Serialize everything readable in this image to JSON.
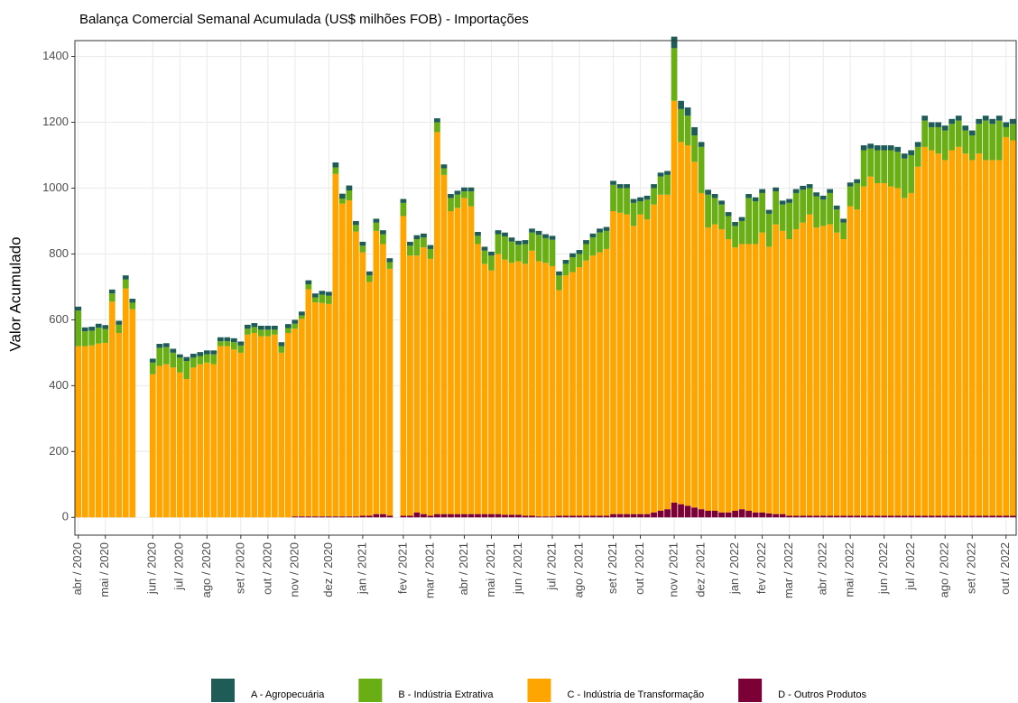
{
  "chart_data": {
    "type": "stacked_bar",
    "title": "Balança Comercial Semanal Acumulada (US$ milhões FOB) - Importações",
    "y_label": "Valor Acumulado",
    "categories": [
      "abr / 2020",
      null,
      null,
      null,
      "mai / 2020",
      null,
      null,
      null,
      null,
      null,
      null,
      "jun / 2020",
      null,
      null,
      null,
      "jul / 2020",
      null,
      null,
      null,
      "ago / 2020",
      null,
      null,
      null,
      null,
      "set / 2020",
      null,
      null,
      null,
      "out / 2020",
      null,
      null,
      null,
      "nov / 2020",
      null,
      null,
      null,
      null,
      "dez / 2020",
      null,
      null,
      null,
      null,
      "jan / 2021",
      null,
      null,
      null,
      null,
      null,
      "fev / 2021",
      null,
      null,
      null,
      "mar / 2021",
      null,
      null,
      null,
      null,
      "abr / 2021",
      null,
      null,
      null,
      "mai / 2021",
      null,
      null,
      null,
      "jun / 2021",
      null,
      null,
      null,
      null,
      "jul / 2021",
      null,
      null,
      null,
      "ago / 2021",
      null,
      null,
      null,
      null,
      "set / 2021",
      null,
      null,
      null,
      "out / 2021",
      null,
      null,
      null,
      null,
      "nov / 2021",
      null,
      null,
      null,
      "dez / 2021",
      null,
      null,
      null,
      null,
      "jan / 2022",
      null,
      null,
      null,
      "fev / 2022",
      null,
      null,
      null,
      "mar / 2022",
      null,
      null,
      null,
      null,
      "abr / 2022",
      null,
      null,
      null,
      "mai / 2022",
      null,
      null,
      null,
      null,
      "jun / 2022",
      null,
      null,
      null,
      "jul / 2022",
      null,
      null,
      null,
      null,
      "ago / 2022",
      null,
      null,
      null,
      "set / 2022",
      null,
      null,
      null,
      null,
      "out / 2022",
      null
    ],
    "series": [
      {
        "name": "A - Agropecuária",
        "color": "#1f5c57",
        "values": [
          12,
          12,
          12,
          12,
          12,
          12,
          12,
          12,
          12,
          null,
          null,
          12,
          12,
          12,
          12,
          10,
          12,
          12,
          12,
          12,
          12,
          12,
          12,
          12,
          12,
          12,
          12,
          12,
          12,
          12,
          12,
          12,
          12,
          12,
          12,
          12,
          12,
          12,
          15,
          15,
          15,
          12,
          12,
          12,
          12,
          12,
          12,
          null,
          12,
          12,
          12,
          12,
          12,
          12,
          12,
          12,
          12,
          12,
          12,
          12,
          12,
          12,
          12,
          12,
          12,
          12,
          12,
          12,
          12,
          12,
          12,
          12,
          12,
          12,
          12,
          12,
          12,
          12,
          12,
          12,
          12,
          12,
          12,
          12,
          12,
          12,
          12,
          12,
          35,
          25,
          25,
          25,
          15,
          15,
          12,
          12,
          12,
          12,
          12,
          12,
          12,
          12,
          12,
          12,
          12,
          12,
          12,
          12,
          12,
          12,
          12,
          12,
          12,
          12,
          12,
          12,
          15,
          15,
          15,
          15,
          15,
          15,
          15,
          15,
          15,
          15,
          15,
          15,
          15,
          15,
          15,
          15,
          15,
          15,
          15,
          15,
          15,
          15,
          15
        ]
      },
      {
        "name": "B - Indústria Extrativa",
        "color": "#6aae15",
        "values": [
          108,
          45,
          45,
          48,
          42,
          25,
          25,
          28,
          20,
          null,
          null,
          35,
          55,
          52,
          45,
          45,
          55,
          30,
          25,
          25,
          30,
          15,
          15,
          22,
          22,
          18,
          18,
          20,
          20,
          15,
          20,
          15,
          15,
          10,
          15,
          15,
          25,
          25,
          20,
          15,
          30,
          20,
          20,
          20,
          25,
          30,
          20,
          null,
          40,
          30,
          50,
          30,
          30,
          30,
          20,
          40,
          40,
          20,
          45,
          25,
          40,
          45,
          60,
          70,
          65,
          50,
          60,
          55,
          80,
          75,
          80,
          45,
          35,
          45,
          40,
          50,
          55,
          60,
          55,
          80,
          75,
          80,
          70,
          40,
          60,
          50,
          55,
          60,
          160,
          100,
          90,
          80,
          140,
          100,
          80,
          75,
          70,
          65,
          70,
          140,
          130,
          120,
          100,
          100,
          80,
          110,
          110,
          100,
          80,
          95,
          80,
          95,
          70,
          50,
          60,
          80,
          110,
          85,
          100,
          100,
          110,
          110,
          120,
          115,
          60,
          80,
          70,
          80,
          90,
          80,
          80,
          70,
          75,
          90,
          120,
          110,
          120,
          30,
          50
        ]
      },
      {
        "name": "C - Indústria de Transformação",
        "color": "#ffa500",
        "values": [
          520,
          520,
          522,
          528,
          530,
          655,
          560,
          695,
          632,
          null,
          null,
          435,
          460,
          465,
          455,
          440,
          420,
          455,
          465,
          470,
          465,
          520,
          520,
          510,
          500,
          555,
          560,
          550,
          550,
          555,
          500,
          560,
          570,
          600,
          690,
          650,
          648,
          645,
          1040,
          950,
          960,
          865,
          800,
          710,
          860,
          820,
          750,
          null,
          910,
          790,
          780,
          810,
          780,
          1160,
          1030,
          920,
          930,
          960,
          935,
          820,
          760,
          740,
          790,
          775,
          765,
          770,
          765,
          805,
          775,
          770,
          760,
          685,
          730,
          740,
          755,
          775,
          790,
          800,
          810,
          920,
          915,
          910,
          875,
          910,
          895,
          935,
          960,
          955,
          1220,
          1100,
          1095,
          1050,
          960,
          860,
          870,
          860,
          830,
          800,
          805,
          810,
          815,
          850,
          810,
          880,
          860,
          840,
          870,
          890,
          915,
          875,
          880,
          885,
          860,
          840,
          940,
          930,
          1000,
          1030,
          1010,
          1010,
          1000,
          995,
          965,
          980,
          1060,
          1120,
          1110,
          1100,
          1080,
          1110,
          1120,
          1100,
          1080,
          1100,
          1080,
          1080,
          1080,
          1150,
          1140
        ]
      },
      {
        "name": "D - Outros Produtos",
        "color": "#7a0036",
        "values": [
          0,
          0,
          0,
          0,
          0,
          0,
          0,
          0,
          0,
          null,
          null,
          0,
          0,
          0,
          0,
          0,
          0,
          0,
          0,
          0,
          0,
          0,
          0,
          0,
          0,
          0,
          0,
          0,
          0,
          0,
          0,
          0,
          3,
          3,
          3,
          3,
          3,
          3,
          3,
          3,
          3,
          3,
          5,
          5,
          10,
          10,
          5,
          null,
          5,
          5,
          15,
          10,
          5,
          10,
          10,
          10,
          10,
          10,
          10,
          10,
          10,
          10,
          10,
          8,
          8,
          8,
          5,
          5,
          3,
          3,
          3,
          5,
          5,
          5,
          5,
          5,
          5,
          5,
          5,
          10,
          10,
          10,
          10,
          10,
          10,
          15,
          20,
          25,
          45,
          40,
          35,
          30,
          25,
          20,
          20,
          15,
          15,
          20,
          25,
          20,
          15,
          15,
          12,
          10,
          10,
          5,
          5,
          5,
          5,
          5,
          5,
          5,
          5,
          5,
          5,
          5,
          5,
          5,
          5,
          5,
          5,
          5,
          5,
          5,
          5,
          5,
          5,
          5,
          5,
          5,
          5,
          5,
          5,
          5,
          5,
          5,
          5,
          5,
          5
        ]
      }
    ],
    "stack_order": [
      "D - Outros Produtos",
      "C - Indústria de Transformação",
      "B - Indústria Extrativa",
      "A - Agropecuária"
    ],
    "ylim": [
      -54,
      1448
    ],
    "yticks": [
      0,
      200,
      400,
      600,
      800,
      1000,
      1200,
      1400
    ],
    "grid": true,
    "legend": "bottom"
  }
}
